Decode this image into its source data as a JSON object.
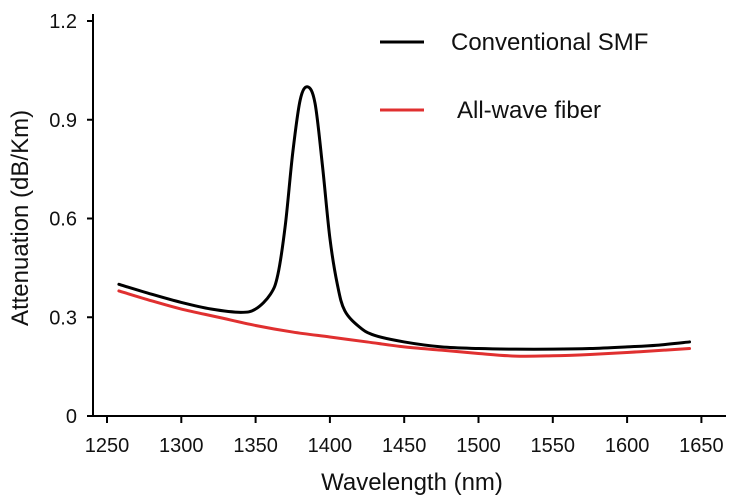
{
  "chart_data": {
    "type": "line",
    "xlabel": "Wavelength (nm)",
    "ylabel": "Attenuation (dB/Km)",
    "xlim": [
      1250,
      1650
    ],
    "ylim": [
      0,
      1.2
    ],
    "xticks": [
      1250,
      1300,
      1350,
      1400,
      1450,
      1500,
      1550,
      1600,
      1650
    ],
    "yticks": [
      0,
      0.3,
      0.6,
      0.9,
      1.2
    ],
    "xtick_labels": [
      "1250",
      "1300",
      "1350",
      "1400",
      "1450",
      "1500",
      "1550",
      "1600",
      "1650"
    ],
    "ytick_labels": [
      "0",
      "0.3",
      "0.6",
      "0.9",
      "1.2"
    ],
    "grid": false,
    "legend_position": "top-right",
    "series": [
      {
        "name": "Conventional SMF",
        "color": "#000000",
        "x": [
          1258,
          1280,
          1300,
          1320,
          1340,
          1350,
          1360,
          1365,
          1370,
          1375,
          1380,
          1385,
          1390,
          1395,
          1400,
          1405,
          1410,
          1420,
          1430,
          1450,
          1475,
          1500,
          1525,
          1550,
          1575,
          1600,
          1620,
          1642
        ],
        "y": [
          0.4,
          0.37,
          0.345,
          0.325,
          0.315,
          0.325,
          0.37,
          0.43,
          0.58,
          0.8,
          0.96,
          1.0,
          0.95,
          0.76,
          0.54,
          0.4,
          0.32,
          0.27,
          0.245,
          0.225,
          0.21,
          0.205,
          0.203,
          0.203,
          0.205,
          0.21,
          0.215,
          0.225
        ]
      },
      {
        "name": "All-wave fiber",
        "color": "#e03030",
        "x": [
          1258,
          1280,
          1300,
          1325,
          1350,
          1375,
          1400,
          1425,
          1450,
          1475,
          1500,
          1525,
          1550,
          1575,
          1600,
          1625,
          1642
        ],
        "y": [
          0.38,
          0.35,
          0.325,
          0.3,
          0.275,
          0.255,
          0.24,
          0.225,
          0.21,
          0.2,
          0.19,
          0.182,
          0.183,
          0.187,
          0.193,
          0.2,
          0.205
        ]
      }
    ]
  }
}
